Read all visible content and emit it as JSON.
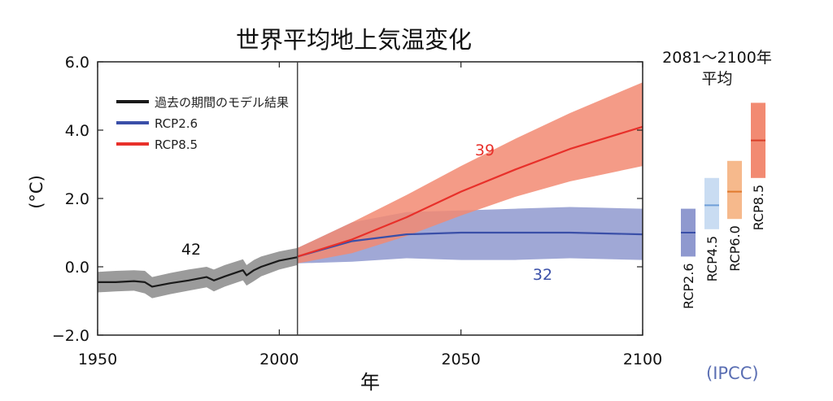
{
  "chart_data": {
    "type": "line",
    "title": "世界平均地上気温変化",
    "xlabel": "年",
    "ylabel": "(°C)",
    "xlim": [
      1950,
      2100
    ],
    "ylim": [
      -2.0,
      6.0
    ],
    "x_ticks": [
      "1950",
      "2000",
      "2050",
      "2100"
    ],
    "y_ticks": [
      "6.0",
      "4.0",
      "2.0",
      "0.0",
      "−2.0"
    ],
    "divider_year": 2005,
    "legend_position": "top-left",
    "series": [
      {
        "name": "過去の期間のモデル結果",
        "color": "#1a1a1a",
        "band_color": "#8a8a8a",
        "count_label": "42",
        "x": [
          1950,
          1955,
          1960,
          1963,
          1965,
          1970,
          1975,
          1980,
          1982,
          1985,
          1990,
          1991,
          1993,
          1995,
          2000,
          2005
        ],
        "y": [
          -0.45,
          -0.45,
          -0.42,
          -0.45,
          -0.58,
          -0.48,
          -0.4,
          -0.3,
          -0.4,
          -0.28,
          -0.1,
          -0.25,
          -0.1,
          0.0,
          0.18,
          0.28
        ],
        "low": [
          -0.75,
          -0.72,
          -0.7,
          -0.78,
          -0.92,
          -0.8,
          -0.7,
          -0.6,
          -0.72,
          -0.58,
          -0.4,
          -0.55,
          -0.42,
          -0.28,
          -0.08,
          0.05
        ],
        "high": [
          -0.15,
          -0.12,
          -0.1,
          -0.12,
          -0.3,
          -0.18,
          -0.08,
          0.0,
          -0.08,
          0.05,
          0.22,
          0.05,
          0.2,
          0.3,
          0.45,
          0.55
        ]
      },
      {
        "name": "RCP2.6",
        "color": "#3a4fa8",
        "band_color": "#8f99cf",
        "count_label": "32",
        "x": [
          2005,
          2020,
          2035,
          2050,
          2065,
          2080,
          2100
        ],
        "y": [
          0.3,
          0.75,
          0.95,
          1.0,
          1.0,
          1.0,
          0.95
        ],
        "low": [
          0.1,
          0.15,
          0.25,
          0.2,
          0.2,
          0.25,
          0.2
        ],
        "high": [
          0.55,
          1.3,
          1.6,
          1.65,
          1.7,
          1.75,
          1.7
        ]
      },
      {
        "name": "RCP8.5",
        "color": "#e8302a",
        "band_color": "#f28a72",
        "count_label": "39",
        "x": [
          2005,
          2020,
          2035,
          2050,
          2065,
          2080,
          2100
        ],
        "y": [
          0.3,
          0.8,
          1.45,
          2.2,
          2.85,
          3.45,
          4.1
        ],
        "low": [
          0.1,
          0.4,
          0.9,
          1.5,
          2.05,
          2.5,
          2.95
        ],
        "high": [
          0.55,
          1.3,
          2.1,
          2.95,
          3.75,
          4.5,
          5.4
        ]
      }
    ],
    "period_average": {
      "title_line1": "2081〜2100年",
      "title_line2": "平均",
      "bars": [
        {
          "name": "RCP2.6",
          "mean": 1.0,
          "low": 0.3,
          "high": 1.7,
          "fill": "#8f99cf",
          "line": "#3a4fa8"
        },
        {
          "name": "RCP4.5",
          "mean": 1.8,
          "low": 1.1,
          "high": 2.6,
          "fill": "#c9dcf2",
          "line": "#6f9fd8"
        },
        {
          "name": "RCP6.0",
          "mean": 2.2,
          "low": 1.4,
          "high": 3.1,
          "fill": "#f6b98c",
          "line": "#e07a2e"
        },
        {
          "name": "RCP8.5",
          "mean": 3.7,
          "low": 2.6,
          "high": 4.8,
          "fill": "#f28a72",
          "line": "#d9402a"
        }
      ]
    },
    "source": "(IPCC)"
  }
}
